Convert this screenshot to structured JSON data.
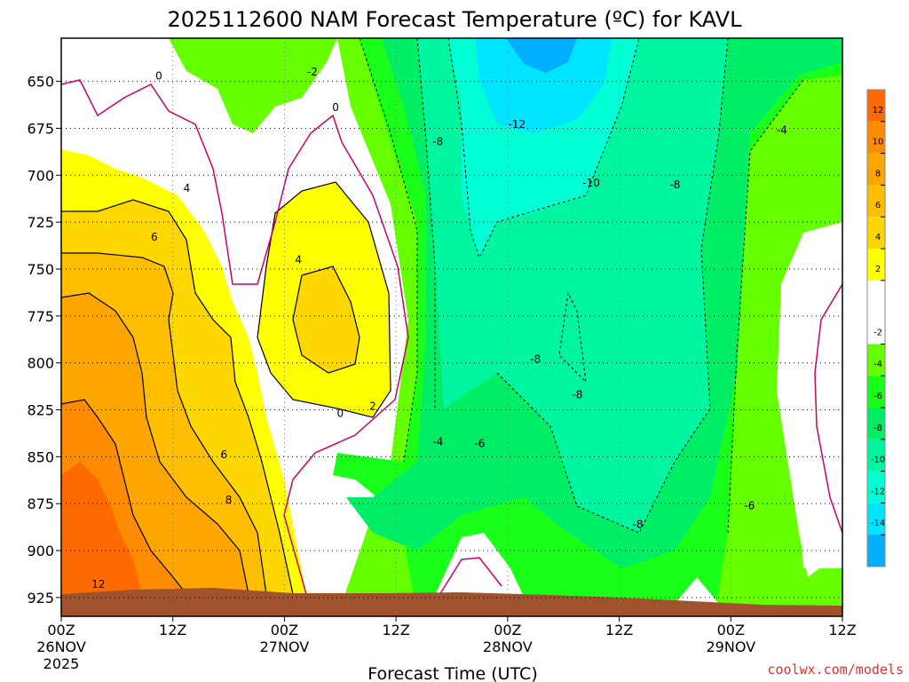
{
  "chart_data": {
    "type": "heatmap",
    "title": "2025112600 NAM Forecast Temperature (ºC) for KAVL",
    "xlabel": "Forecast Time (UTC)",
    "credit": "coolwx.com/models",
    "x_ticks": [
      {
        "hour": 0,
        "label": "00Z",
        "date": "26NOV",
        "year": "2025"
      },
      {
        "hour": 12,
        "label": "12Z"
      },
      {
        "hour": 24,
        "label": "00Z",
        "date": "27NOV"
      },
      {
        "hour": 36,
        "label": "12Z"
      },
      {
        "hour": 48,
        "label": "00Z",
        "date": "28NOV"
      },
      {
        "hour": 60,
        "label": "12Z"
      },
      {
        "hour": 72,
        "label": "00Z",
        "date": "29NOV"
      },
      {
        "hour": 84,
        "label": "12Z"
      }
    ],
    "xlim": [
      0,
      84
    ],
    "y_ticks": [
      650,
      675,
      700,
      725,
      750,
      775,
      800,
      825,
      850,
      875,
      900,
      925
    ],
    "ylim": [
      935,
      627
    ],
    "grid": true,
    "colorbar": {
      "ticks": [
        12,
        10,
        8,
        6,
        4,
        2,
        -2,
        -4,
        -6,
        -8,
        -10,
        -12,
        -14
      ],
      "bins": [
        {
          "min": 12,
          "max": 14,
          "color": "#ff6a00"
        },
        {
          "min": 10,
          "max": 12,
          "color": "#ff8c00"
        },
        {
          "min": 8,
          "max": 10,
          "color": "#ffa500"
        },
        {
          "min": 6,
          "max": 8,
          "color": "#ffbf00"
        },
        {
          "min": 4,
          "max": 6,
          "color": "#ffd700"
        },
        {
          "min": 2,
          "max": 4,
          "color": "#ffff00"
        },
        {
          "min": -2,
          "max": 2,
          "color": "#ffffff"
        },
        {
          "min": -4,
          "max": -2,
          "color": "#66ff00"
        },
        {
          "min": -6,
          "max": -4,
          "color": "#1aff1a"
        },
        {
          "min": -8,
          "max": -6,
          "color": "#00ee66"
        },
        {
          "min": -10,
          "max": -8,
          "color": "#00f5a0"
        },
        {
          "min": -12,
          "max": -10,
          "color": "#00ffd5"
        },
        {
          "min": -14,
          "max": -12,
          "color": "#00e5ff"
        },
        {
          "min": -16,
          "max": -14,
          "color": "#00b0ff"
        }
      ]
    },
    "contour_labels": [
      {
        "text": "0",
        "hour": 10.5,
        "p": 647
      },
      {
        "text": "-2",
        "hour": 27,
        "p": 645
      },
      {
        "text": "0",
        "hour": 29.5,
        "p": 664
      },
      {
        "text": "-12",
        "hour": 49,
        "p": 673
      },
      {
        "text": "-8",
        "hour": 40.5,
        "p": 682
      },
      {
        "text": "-4",
        "hour": 77.5,
        "p": 676
      },
      {
        "text": "-10",
        "hour": 57,
        "p": 704
      },
      {
        "text": "-8",
        "hour": 66,
        "p": 705
      },
      {
        "text": "4",
        "hour": 13.5,
        "p": 707
      },
      {
        "text": "6",
        "hour": 10,
        "p": 733
      },
      {
        "text": "4",
        "hour": 25.5,
        "p": 745
      },
      {
        "text": "-8",
        "hour": 51,
        "p": 798
      },
      {
        "text": "-8",
        "hour": 55.5,
        "p": 817
      },
      {
        "text": "2",
        "hour": 33.5,
        "p": 823
      },
      {
        "text": "0",
        "hour": 30,
        "p": 827
      },
      {
        "text": "-4",
        "hour": 40.5,
        "p": 842
      },
      {
        "text": "-6",
        "hour": 45,
        "p": 843
      },
      {
        "text": "6",
        "hour": 17.5,
        "p": 849
      },
      {
        "text": "8",
        "hour": 18,
        "p": 873
      },
      {
        "text": "-6",
        "hour": 74,
        "p": 876
      },
      {
        "text": "-8",
        "hour": 62,
        "p": 886
      },
      {
        "text": "12",
        "hour": 4,
        "p": 918
      }
    ],
    "terrain_color": "#a0522d",
    "freezing_contour_color": "#cc0066"
  }
}
